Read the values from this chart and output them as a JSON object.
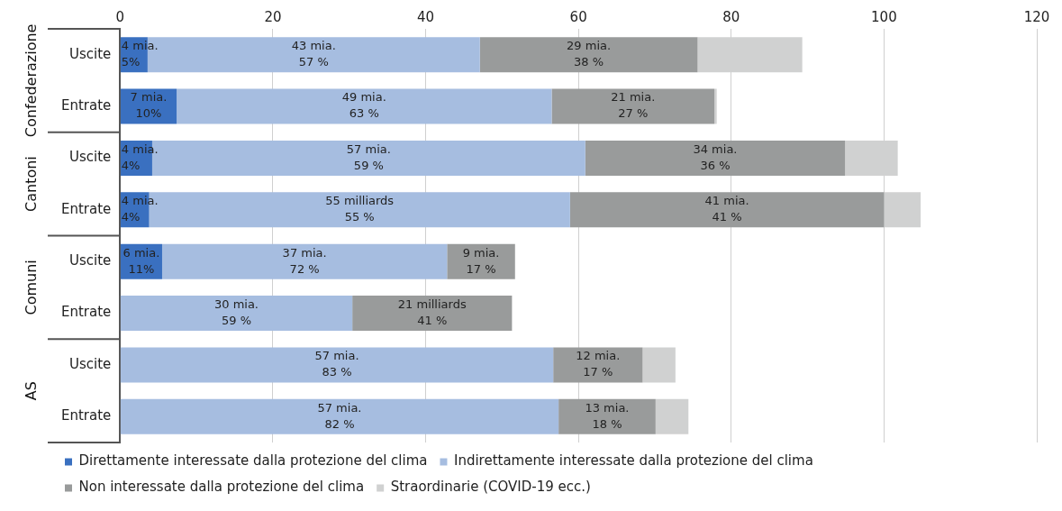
{
  "chart_data": {
    "type": "bar",
    "orientation": "horizontal",
    "stacked": true,
    "categories": [
      "Uscite",
      "Entrate",
      "Uscite",
      "Entrate",
      "Uscite",
      "Entrate",
      "Uscite",
      "Entrate"
    ],
    "annotations": [
      "Confederazione",
      "Cantoni",
      "Comuni",
      "AS"
    ],
    "xlim": [
      0,
      120
    ],
    "xticks": [
      0,
      20,
      40,
      60,
      80,
      100,
      120
    ],
    "grid": "x",
    "legend": "bottom",
    "series": [
      {
        "name": "Direttamente interessate dalla protezione del clima",
        "color": "#3a70c0",
        "values": [
          3.6,
          7.4,
          4.2,
          3.8,
          5.5,
          null,
          null,
          null
        ],
        "value_labels": [
          "4 mia.\n5%",
          "7 mia.\n10%",
          "4 mia.\n4%",
          "4 mia.\n4%",
          "6 mia.\n11%",
          null,
          null,
          null
        ]
      },
      {
        "name": "Indirettamente interessate dalla protezione del clima",
        "color": "#a6bde0",
        "values": [
          43.5,
          49.1,
          56.7,
          55.1,
          37.3,
          30.4,
          56.7,
          57.4
        ],
        "value_labels": [
          "43 mia.\n57 %",
          "49 mia.\n63 %",
          "57 mia.\n59 %",
          "55 milliards\n55 %",
          "37 mia.\n72 %",
          "30 mia.\n59 %",
          "57 mia.\n83 %",
          "57 mia.\n82 %"
        ]
      },
      {
        "name": "Non interessate dalla protezione del clima",
        "color": "#999b9b",
        "values": [
          28.5,
          21.3,
          34.0,
          41.1,
          8.9,
          20.9,
          11.7,
          12.7
        ],
        "value_labels": [
          "29 mia.\n38 %",
          "21 mia.\n27 %",
          "34 mia.\n36 %",
          "41 mia.\n41 %",
          "9 mia.\n17 %",
          "21 milliards\n41 %",
          "12 mia.\n17 %",
          "13 mia.\n18 %"
        ]
      },
      {
        "name": "Straordinarie (COVID-19 ecc.)",
        "color": "#d0d1d1",
        "values": [
          13.7,
          0.3,
          6.9,
          4.8,
          null,
          null,
          4.3,
          4.3
        ]
      }
    ]
  }
}
